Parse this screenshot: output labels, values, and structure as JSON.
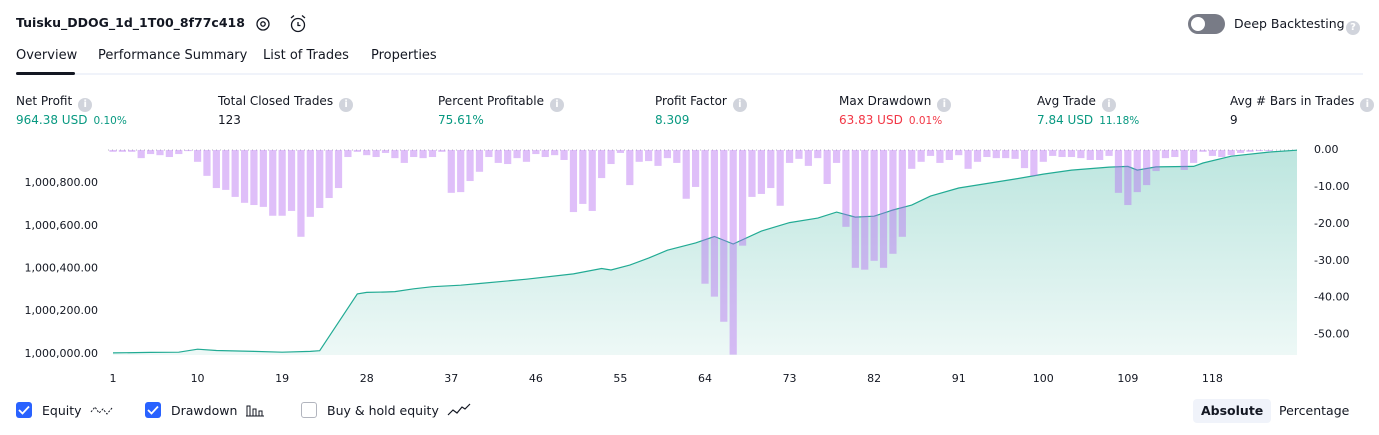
{
  "header": {
    "title": "Tuisku_DDOG_1d_1T00_8f77c418",
    "deep_backtesting": "Deep Backtesting"
  },
  "tabs": [
    {
      "label": "Overview",
      "active": true
    },
    {
      "label": "Performance Summary",
      "active": false
    },
    {
      "label": "List of Trades",
      "active": false
    },
    {
      "label": "Properties",
      "active": false
    }
  ],
  "metrics": [
    {
      "label": "Net Profit",
      "value": "964.38 USD",
      "change": "0.10%",
      "color": "#089981"
    },
    {
      "label": "Total Closed Trades",
      "value": "123",
      "color": "#131722"
    },
    {
      "label": "Percent Profitable",
      "value": "75.61%",
      "color": "#089981"
    },
    {
      "label": "Profit Factor",
      "value": "8.309",
      "color": "#089981"
    },
    {
      "label": "Max Drawdown",
      "value": "63.83 USD",
      "change": "0.01%",
      "color": "#f23645"
    },
    {
      "label": "Avg Trade",
      "value": "7.84 USD",
      "change": "11.18%",
      "color": "#089981"
    },
    {
      "label": "Avg # Bars in Trades",
      "value": "9",
      "color": "#131722"
    }
  ],
  "chart_data": {
    "type": "combo",
    "xlim": [
      1,
      127
    ],
    "xticks": [
      1,
      10,
      19,
      28,
      37,
      46,
      55,
      64,
      73,
      82,
      91,
      100,
      109,
      118
    ],
    "ylim": [
      999995,
      1000955
    ],
    "yticks": [
      {
        "value": 1000000,
        "label": "1,000,000.00"
      },
      {
        "value": 1000200,
        "label": "1,000,200.00"
      },
      {
        "value": 1000400,
        "label": "1,000,400.00"
      },
      {
        "value": 1000600,
        "label": "1,000,600.00"
      },
      {
        "value": 1000800,
        "label": "1,000,800.00"
      }
    ],
    "y2lim": [
      -55.5,
      0
    ],
    "y2ticks": [
      {
        "value": 0,
        "label": "0.00"
      },
      {
        "value": -10,
        "label": "-10.00"
      },
      {
        "value": -20,
        "label": "-20.00"
      },
      {
        "value": -30,
        "label": "-30.00"
      },
      {
        "value": -40,
        "label": "-40.00"
      },
      {
        "value": -50,
        "label": "-50.00"
      }
    ],
    "series": [
      {
        "name": "Equity",
        "type": "line",
        "color": "#22ab94",
        "x": [
          1,
          5,
          8,
          10,
          12,
          16,
          19,
          22,
          23,
          27,
          28,
          30,
          31,
          33,
          35,
          38,
          40,
          45,
          50,
          53,
          54,
          56,
          58,
          60,
          63,
          65,
          67,
          70,
          73,
          76,
          78,
          80,
          82,
          84,
          86,
          88,
          91,
          93,
          97,
          100,
          103,
          107,
          109,
          110,
          112,
          116,
          117,
          120,
          124,
          127
        ],
        "values": [
          1000005,
          1000007,
          1000008,
          1000022,
          1000016,
          1000012,
          1000008,
          1000012,
          1000015,
          1000281,
          1000288,
          1000290,
          1000292,
          1000305,
          1000315,
          1000322,
          1000330,
          1000350,
          1000375,
          1000400,
          1000393,
          1000416,
          1000449,
          1000486,
          1000520,
          1000550,
          1000515,
          1000575,
          1000615,
          1000636,
          1000664,
          1000641,
          1000645,
          1000674,
          1000697,
          1000739,
          1000777,
          1000791,
          1000819,
          1000842,
          1000861,
          1000875,
          1000878,
          1000861,
          1000876,
          1000878,
          1000894,
          1000926,
          1000945,
          1000954
        ]
      },
      {
        "name": "Drawdown",
        "type": "bar",
        "axis": "y2",
        "color": "rgba(178,102,240,0.42)",
        "x": [
          1,
          2,
          3,
          4,
          5,
          6,
          7,
          8,
          9,
          10,
          11,
          12,
          13,
          14,
          15,
          16,
          17,
          18,
          19,
          20,
          21,
          22,
          23,
          24,
          25,
          26,
          27,
          28,
          29,
          30,
          31,
          32,
          33,
          34,
          35,
          36,
          37,
          38,
          39,
          40,
          41,
          42,
          43,
          44,
          45,
          46,
          47,
          48,
          49,
          50,
          51,
          52,
          53,
          54,
          55,
          56,
          57,
          58,
          59,
          60,
          61,
          62,
          63,
          64,
          65,
          66,
          67,
          68,
          69,
          70,
          71,
          72,
          73,
          74,
          75,
          76,
          77,
          78,
          79,
          80,
          81,
          82,
          83,
          84,
          85,
          86,
          87,
          88,
          89,
          90,
          91,
          92,
          93,
          94,
          95,
          96,
          97,
          98,
          99,
          100,
          101,
          102,
          103,
          104,
          105,
          106,
          107,
          108,
          109,
          110,
          111,
          112,
          113,
          114,
          115,
          116,
          117,
          118,
          119,
          120,
          121,
          122,
          123,
          124
        ],
        "values": [
          -0.5,
          -0.5,
          -0.5,
          -2.2,
          -1.1,
          -1.4,
          -1.9,
          -1.1,
          -0.3,
          -3.2,
          -7.0,
          -10.3,
          -10.8,
          -12.7,
          -14.3,
          -14.9,
          -15.4,
          -17.8,
          -17.8,
          -16.5,
          -23.5,
          -18.1,
          -15.7,
          -13.0,
          -10.3,
          -1.9,
          -0.5,
          -1.4,
          -1.9,
          -0.8,
          -2.2,
          -3.5,
          -1.9,
          -2.2,
          -1.9,
          -0.5,
          -11.6,
          -11.4,
          -8.4,
          -5.9,
          -1.9,
          -3.5,
          -3.8,
          -2.2,
          -3.2,
          -1.1,
          -1.9,
          -1.4,
          -2.7,
          -16.8,
          -14.6,
          -16.5,
          -7.6,
          -3.8,
          -0.8,
          -9.5,
          -3.2,
          -3.0,
          -4.3,
          -2.2,
          -3.5,
          -13.2,
          -10.0,
          -36.2,
          -39.7,
          -46.5,
          -55.4,
          -25.9,
          -12.7,
          -11.9,
          -10.3,
          -15.1,
          -3.5,
          -2.4,
          -4.3,
          -2.2,
          -9.2,
          -3.5,
          -20.8,
          -31.9,
          -32.4,
          -30.0,
          -31.9,
          -28.1,
          -23.5,
          -5.1,
          -3.2,
          -1.6,
          -3.5,
          -2.7,
          -1.4,
          -5.1,
          -3.2,
          -1.9,
          -2.2,
          -2.2,
          -2.4,
          -4.9,
          -7.0,
          -3.2,
          -1.6,
          -1.9,
          -1.9,
          -2.2,
          -2.7,
          -2.7,
          -1.6,
          -11.6,
          -14.9,
          -11.4,
          -9.5,
          -5.7,
          -2.2,
          -1.9,
          -5.4,
          -3.5,
          -0.5,
          -1.6,
          -1.9,
          -1.4,
          -0.8,
          -0.5,
          -0.3,
          -0.3
        ]
      }
    ]
  },
  "legend": [
    {
      "label": "Equity",
      "checked": true
    },
    {
      "label": "Drawdown",
      "checked": true
    },
    {
      "label": "Buy & hold equity",
      "checked": false
    }
  ],
  "scale_modes": [
    {
      "label": "Absolute",
      "active": true
    },
    {
      "label": "Percentage",
      "active": false
    }
  ]
}
